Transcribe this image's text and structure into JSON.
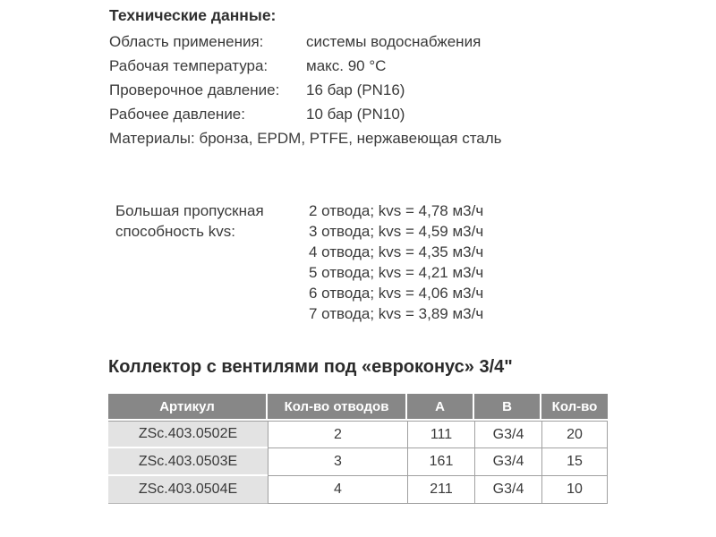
{
  "page": {
    "background": "#ffffff",
    "text_color": "#3a3a3a"
  },
  "tech_specs": {
    "title": "Технические данные:",
    "rows": [
      {
        "label": "Область применения:",
        "value": "системы водоснабжения"
      },
      {
        "label": "Рабочая температура:",
        "value": "макс. 90 °C"
      },
      {
        "label": "Проверочное давление:",
        "value": "16 бар (PN16)"
      },
      {
        "label": "Рабочее давление:",
        "value": "10 бар (PN10)"
      }
    ],
    "materials_line": "Материалы: бронза, EPDM, PTFE, нержавеющая сталь"
  },
  "kvs": {
    "label_line1": "Большая пропускная",
    "label_line2": "способность kvs:",
    "entries": [
      "2 отвода; kvs = 4,78 м3/ч",
      "3 отвода; kvs = 4,59 м3/ч",
      "4 отвода; kvs = 4,35 м3/ч",
      "5 отвода; kvs = 4,21 м3/ч",
      "6 отвода; kvs = 4,06 м3/ч",
      "7 отвода; kvs = 3,89 м3/ч"
    ]
  },
  "product_table": {
    "heading": "Коллектор с вентилями под «евроконус» 3/4\"",
    "columns": [
      "Артикул",
      "Кол-во отводов",
      "A",
      "B",
      "Кол-во"
    ],
    "rows": [
      [
        "ZSc.403.0502E",
        "2",
        "111",
        "G3/4",
        "20"
      ],
      [
        "ZSc.403.0503E",
        "3",
        "161",
        "G3/4",
        "15"
      ],
      [
        "ZSc.403.0504E",
        "4",
        "211",
        "G3/4",
        "10"
      ]
    ],
    "colors": {
      "header_bg": "#878787",
      "header_text": "#ffffff",
      "first_col_bg": "#e3e3e3",
      "border": "#a0a0a0"
    }
  }
}
